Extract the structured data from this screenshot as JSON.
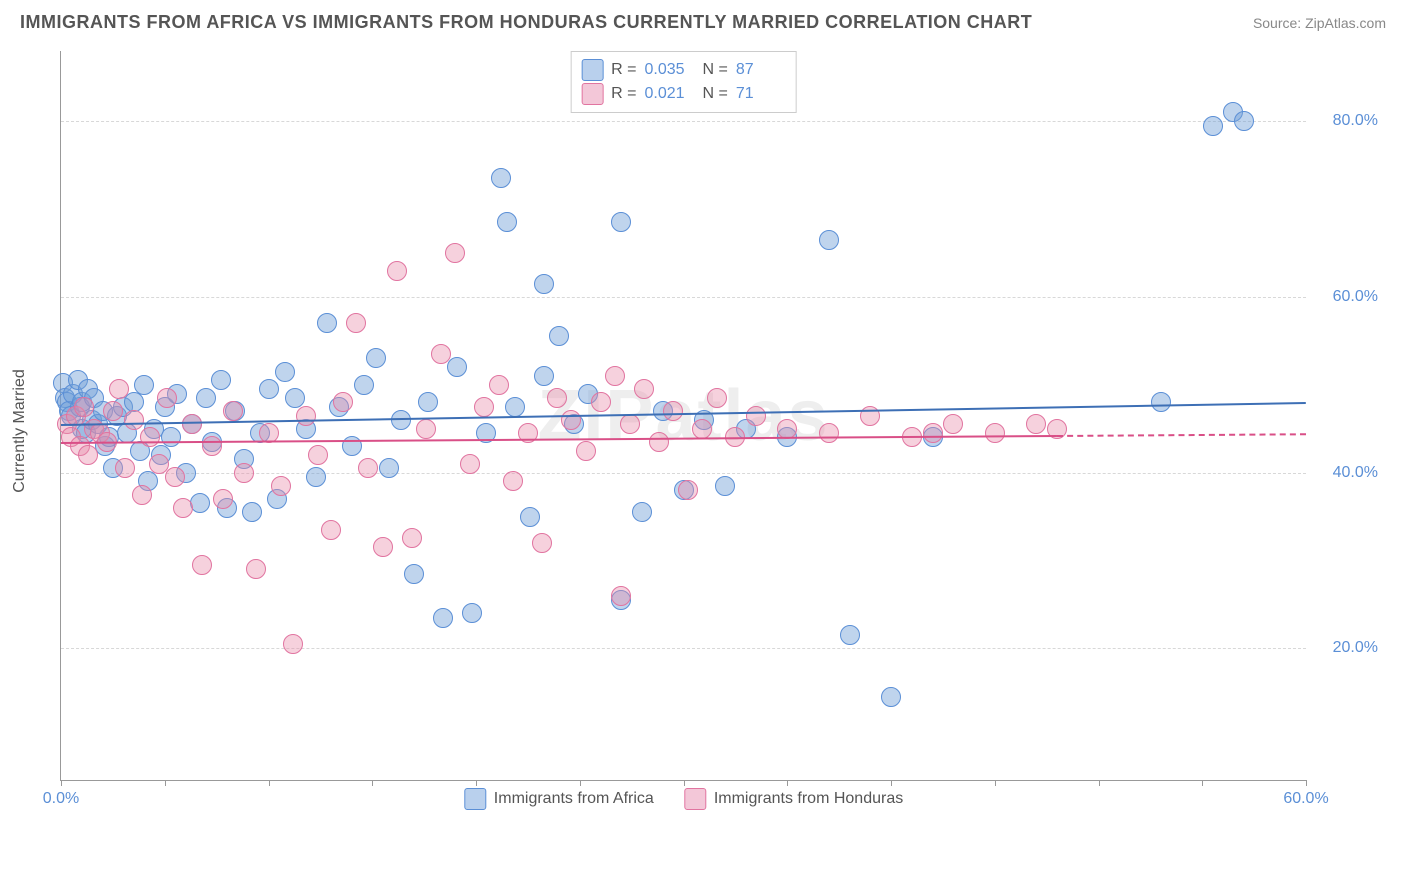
{
  "header": {
    "title": "IMMIGRANTS FROM AFRICA VS IMMIGRANTS FROM HONDURAS CURRENTLY MARRIED CORRELATION CHART",
    "source_label": "Source: ",
    "source_name": "ZipAtlas.com"
  },
  "chart": {
    "type": "scatter",
    "watermark": "ZIPatlas",
    "ylabel": "Currently Married",
    "xlim": [
      0,
      60
    ],
    "ylim": [
      5,
      88
    ],
    "x_ticks": [
      0,
      5,
      10,
      15,
      20,
      25,
      30,
      35,
      40,
      45,
      50,
      55,
      60
    ],
    "x_tick_labels": {
      "0": "0.0%",
      "60": "60.0%"
    },
    "y_gridlines": [
      20,
      40,
      60,
      80
    ],
    "y_tick_labels": {
      "20": "20.0%",
      "40": "40.0%",
      "60": "60.0%",
      "80": "80.0%"
    },
    "grid_color": "#d8d8d8",
    "axis_color": "#999999",
    "tick_label_color": "#5b8fd6",
    "label_color": "#555555",
    "point_radius": 9,
    "series": [
      {
        "name": "Immigrants from Africa",
        "fill": "rgba(114,159,214,0.45)",
        "stroke": "#5b8fd6",
        "swatch_fill": "#b9d0ed",
        "swatch_border": "#5b8fd6",
        "R": "0.035",
        "N": "87",
        "trend": {
          "x0": 0,
          "y0": 45.5,
          "x1": 60,
          "y1": 48.0,
          "solid_until_x": 60,
          "color": "#3d6fb5"
        },
        "points": [
          [
            0.1,
            50.2
          ],
          [
            0.2,
            48.5
          ],
          [
            0.3,
            48.0
          ],
          [
            0.4,
            47.0
          ],
          [
            0.5,
            46.5
          ],
          [
            0.6,
            49.0
          ],
          [
            0.8,
            50.5
          ],
          [
            0.9,
            47.5
          ],
          [
            1.0,
            45.0
          ],
          [
            1.0,
            48.0
          ],
          [
            1.2,
            44.5
          ],
          [
            1.3,
            49.5
          ],
          [
            1.5,
            46.0
          ],
          [
            1.6,
            48.5
          ],
          [
            1.8,
            45.5
          ],
          [
            2.0,
            47.0
          ],
          [
            2.1,
            43.0
          ],
          [
            2.3,
            44.0
          ],
          [
            2.5,
            40.5
          ],
          [
            2.7,
            46.5
          ],
          [
            3.0,
            47.5
          ],
          [
            3.2,
            44.5
          ],
          [
            3.5,
            48.0
          ],
          [
            3.8,
            42.5
          ],
          [
            4.0,
            50.0
          ],
          [
            4.2,
            39.0
          ],
          [
            4.5,
            45.0
          ],
          [
            4.8,
            42.0
          ],
          [
            5.0,
            47.5
          ],
          [
            5.3,
            44.0
          ],
          [
            5.6,
            49.0
          ],
          [
            6.0,
            40.0
          ],
          [
            6.3,
            45.5
          ],
          [
            6.7,
            36.5
          ],
          [
            7.0,
            48.5
          ],
          [
            7.3,
            43.5
          ],
          [
            7.7,
            50.5
          ],
          [
            8.0,
            36.0
          ],
          [
            8.4,
            47.0
          ],
          [
            8.8,
            41.5
          ],
          [
            9.2,
            35.5
          ],
          [
            9.6,
            44.5
          ],
          [
            10.0,
            49.5
          ],
          [
            10.4,
            37.0
          ],
          [
            10.8,
            51.5
          ],
          [
            11.3,
            48.5
          ],
          [
            11.8,
            45.0
          ],
          [
            12.3,
            39.5
          ],
          [
            12.8,
            57.0
          ],
          [
            13.4,
            47.5
          ],
          [
            14.0,
            43.0
          ],
          [
            14.6,
            50.0
          ],
          [
            15.2,
            53.0
          ],
          [
            15.8,
            40.5
          ],
          [
            16.4,
            46.0
          ],
          [
            17.0,
            28.5
          ],
          [
            17.7,
            48.0
          ],
          [
            18.4,
            23.5
          ],
          [
            19.1,
            52.0
          ],
          [
            19.8,
            24.0
          ],
          [
            20.5,
            44.5
          ],
          [
            21.2,
            73.5
          ],
          [
            21.9,
            47.5
          ],
          [
            21.5,
            68.5
          ],
          [
            22.6,
            35.0
          ],
          [
            23.3,
            51.0
          ],
          [
            23.3,
            61.5
          ],
          [
            24.0,
            55.5
          ],
          [
            24.7,
            45.5
          ],
          [
            25.4,
            49.0
          ],
          [
            27.0,
            25.5
          ],
          [
            27.0,
            68.5
          ],
          [
            28.0,
            35.5
          ],
          [
            29.0,
            47.0
          ],
          [
            30.0,
            38.0
          ],
          [
            31.0,
            46.0
          ],
          [
            32.0,
            38.5
          ],
          [
            33.0,
            45.0
          ],
          [
            35.0,
            44.0
          ],
          [
            37.0,
            66.5
          ],
          [
            38.0,
            21.5
          ],
          [
            40.0,
            14.5
          ],
          [
            42.0,
            44.0
          ],
          [
            53.0,
            48.0
          ],
          [
            55.5,
            79.5
          ],
          [
            56.5,
            81.0
          ],
          [
            57.0,
            80.0
          ]
        ]
      },
      {
        "name": "Immigrants from Honduras",
        "fill": "rgba(233,140,170,0.40)",
        "stroke": "#e174a0",
        "swatch_fill": "#f3c7d8",
        "swatch_border": "#e174a0",
        "R": "0.021",
        "N": "71",
        "trend": {
          "x0": 0,
          "y0": 43.5,
          "x1": 60,
          "y1": 44.5,
          "solid_until_x": 48,
          "color": "#d94f87"
        },
        "points": [
          [
            0.3,
            45.5
          ],
          [
            0.5,
            44.0
          ],
          [
            0.7,
            46.5
          ],
          [
            0.9,
            43.0
          ],
          [
            1.1,
            47.5
          ],
          [
            1.3,
            42.0
          ],
          [
            1.6,
            45.0
          ],
          [
            1.9,
            44.5
          ],
          [
            2.2,
            43.5
          ],
          [
            2.5,
            47.0
          ],
          [
            2.8,
            49.5
          ],
          [
            3.1,
            40.5
          ],
          [
            3.5,
            46.0
          ],
          [
            3.9,
            37.5
          ],
          [
            4.3,
            44.0
          ],
          [
            4.7,
            41.0
          ],
          [
            5.1,
            48.5
          ],
          [
            5.5,
            39.5
          ],
          [
            5.9,
            36.0
          ],
          [
            6.3,
            45.5
          ],
          [
            6.8,
            29.5
          ],
          [
            7.3,
            43.0
          ],
          [
            7.8,
            37.0
          ],
          [
            8.3,
            47.0
          ],
          [
            8.8,
            40.0
          ],
          [
            9.4,
            29.0
          ],
          [
            10.0,
            44.5
          ],
          [
            10.6,
            38.5
          ],
          [
            11.2,
            20.5
          ],
          [
            11.8,
            46.5
          ],
          [
            12.4,
            42.0
          ],
          [
            13.0,
            33.5
          ],
          [
            13.6,
            48.0
          ],
          [
            14.2,
            57.0
          ],
          [
            14.8,
            40.5
          ],
          [
            15.5,
            31.5
          ],
          [
            16.2,
            63.0
          ],
          [
            16.9,
            32.5
          ],
          [
            17.6,
            45.0
          ],
          [
            18.3,
            53.5
          ],
          [
            19.0,
            65.0
          ],
          [
            19.7,
            41.0
          ],
          [
            20.4,
            47.5
          ],
          [
            21.1,
            50.0
          ],
          [
            21.8,
            39.0
          ],
          [
            22.5,
            44.5
          ],
          [
            23.2,
            32.0
          ],
          [
            23.9,
            48.5
          ],
          [
            24.6,
            46.0
          ],
          [
            25.3,
            42.5
          ],
          [
            26.0,
            48.0
          ],
          [
            26.7,
            51.0
          ],
          [
            27.4,
            45.5
          ],
          [
            27.0,
            26.0
          ],
          [
            28.1,
            49.5
          ],
          [
            28.8,
            43.5
          ],
          [
            29.5,
            47.0
          ],
          [
            30.2,
            38.0
          ],
          [
            30.9,
            45.0
          ],
          [
            31.6,
            48.5
          ],
          [
            32.5,
            44.0
          ],
          [
            33.5,
            46.5
          ],
          [
            35.0,
            45.0
          ],
          [
            37.0,
            44.5
          ],
          [
            39.0,
            46.5
          ],
          [
            41.0,
            44.0
          ],
          [
            43.0,
            45.5
          ],
          [
            45.0,
            44.5
          ],
          [
            47.0,
            45.5
          ],
          [
            48.0,
            45.0
          ],
          [
            42.0,
            44.5
          ]
        ]
      }
    ],
    "legend_labels": {
      "R_prefix": "R =",
      "N_prefix": "N ="
    }
  }
}
